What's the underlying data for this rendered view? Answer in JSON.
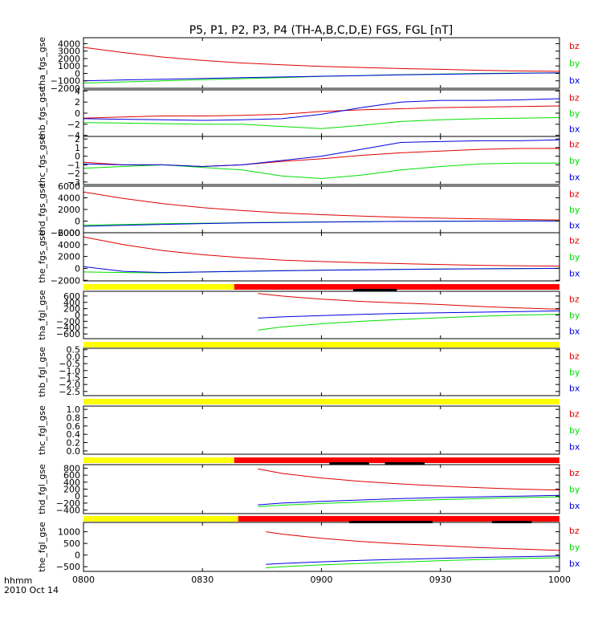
{
  "title": "P5, P1, P2, P3, P4 (TH-A,B,C,D,E) FGS, FGL [nT]",
  "x_axis": {
    "ticks": [
      "0800",
      "0830",
      "0900",
      "0930",
      "1000"
    ],
    "tick_minutes": [
      0,
      30,
      60,
      90,
      120
    ],
    "label_line1": "hhmm",
    "label_line2": "2010 Oct 14"
  },
  "legend_labels": [
    "bz",
    "by",
    "bx"
  ],
  "colors": {
    "bz": "#e00000",
    "by": "#00e000",
    "bx": "#0000e0",
    "bar_yellow": "#ffff00",
    "bar_red": "#ff0000"
  },
  "chart_data": [
    {
      "type": "line",
      "ylabel": "tha_fgs_gse",
      "ylim": [
        -2000,
        4800
      ],
      "yticks": [
        -2000,
        -1000,
        0,
        1000,
        2000,
        3000,
        4000
      ],
      "ytick_labels": [
        "−2000",
        "−1000",
        "0",
        "1000",
        "2000",
        "3000",
        "4000"
      ],
      "x": [
        0,
        10,
        20,
        30,
        40,
        50,
        60,
        70,
        80,
        90,
        100,
        110,
        120
      ],
      "series": [
        {
          "name": "bz",
          "values": [
            3500,
            2800,
            2200,
            1750,
            1400,
            1150,
            950,
            800,
            650,
            550,
            420,
            330,
            280
          ]
        },
        {
          "name": "by",
          "values": [
            -1300,
            -1150,
            -1000,
            -850,
            -700,
            -560,
            -400,
            -280,
            -170,
            -80,
            0,
            50,
            80
          ]
        },
        {
          "name": "bx",
          "values": [
            -1000,
            -880,
            -780,
            -680,
            -580,
            -480,
            -380,
            -290,
            -200,
            -120,
            -50,
            20,
            60
          ]
        }
      ]
    },
    {
      "type": "line",
      "ylabel": "thb_fgs_gse",
      "ylim": [
        -4.2,
        4.2
      ],
      "yticks": [
        -4,
        -2,
        0,
        2,
        4
      ],
      "ytick_labels": [
        "−4",
        "−2",
        "0",
        "2",
        "4"
      ],
      "x": [
        0,
        10,
        20,
        30,
        40,
        50,
        60,
        70,
        80,
        90,
        100,
        110,
        120
      ],
      "series": [
        {
          "name": "bz",
          "values": [
            -0.9,
            -0.7,
            -0.5,
            -0.5,
            -0.4,
            -0.2,
            0.3,
            0.6,
            0.8,
            1.0,
            1.1,
            1.2,
            1.3
          ]
        },
        {
          "name": "by",
          "values": [
            -1.7,
            -1.8,
            -1.9,
            -2.0,
            -2.0,
            -2.4,
            -2.8,
            -2.2,
            -1.5,
            -1.2,
            -1.0,
            -0.9,
            -0.8
          ]
        },
        {
          "name": "bx",
          "values": [
            -1.0,
            -1.1,
            -1.2,
            -1.3,
            -1.2,
            -1.0,
            -0.2,
            1.0,
            2.0,
            2.3,
            2.3,
            2.4,
            2.6
          ]
        }
      ]
    },
    {
      "type": "line",
      "ylabel": "thc_fgs_gse",
      "ylim": [
        -3.3,
        2.3
      ],
      "yticks": [
        -3,
        -2,
        -1,
        0,
        1,
        2
      ],
      "ytick_labels": [
        "−3",
        "−2",
        "−1",
        "0",
        "1",
        "2"
      ],
      "x": [
        0,
        10,
        20,
        30,
        40,
        50,
        60,
        70,
        80,
        90,
        100,
        110,
        120
      ],
      "series": [
        {
          "name": "bz",
          "values": [
            -0.7,
            -1.0,
            -1.0,
            -1.2,
            -1.0,
            -0.6,
            -0.3,
            0.1,
            0.4,
            0.6,
            0.8,
            0.9,
            0.9
          ]
        },
        {
          "name": "by",
          "values": [
            -1.4,
            -1.2,
            -1.0,
            -1.3,
            -1.6,
            -2.3,
            -2.6,
            -2.2,
            -1.6,
            -1.2,
            -0.9,
            -0.8,
            -0.8
          ]
        },
        {
          "name": "bx",
          "values": [
            -0.9,
            -1.0,
            -1.0,
            -1.2,
            -1.0,
            -0.5,
            0.0,
            0.8,
            1.6,
            1.7,
            1.8,
            1.8,
            1.9
          ]
        }
      ]
    },
    {
      "type": "line",
      "ylabel": "thd_fgs_gse",
      "ylim": [
        -2000,
        6000
      ],
      "yticks": [
        -2000,
        0,
        2000,
        4000,
        6000
      ],
      "ytick_labels": [
        "−2000",
        "0",
        "2000",
        "4000",
        "6000"
      ],
      "x": [
        0,
        10,
        20,
        30,
        40,
        50,
        60,
        70,
        80,
        90,
        100,
        110,
        120
      ],
      "series": [
        {
          "name": "bz",
          "values": [
            5000,
            3900,
            3000,
            2300,
            1800,
            1400,
            1100,
            850,
            650,
            500,
            380,
            280,
            200
          ]
        },
        {
          "name": "by",
          "values": [
            -700,
            -580,
            -460,
            -360,
            -270,
            -200,
            -140,
            -90,
            -50,
            -20,
            0,
            20,
            30
          ]
        },
        {
          "name": "bx",
          "values": [
            -900,
            -720,
            -560,
            -430,
            -320,
            -230,
            -160,
            -100,
            -60,
            -30,
            -10,
            10,
            20
          ]
        }
      ]
    },
    {
      "type": "line",
      "ylabel": "the_fgs_gse",
      "ylim": [
        -2100,
        6000
      ],
      "yticks": [
        -2000,
        0,
        2000,
        4000,
        6000
      ],
      "ytick_labels": [
        "−2000",
        "0",
        "2000",
        "4000",
        "6000"
      ],
      "x": [
        0,
        10,
        20,
        30,
        40,
        50,
        60,
        70,
        80,
        90,
        100,
        110,
        120
      ],
      "series": [
        {
          "name": "bz",
          "values": [
            5300,
            4000,
            3000,
            2300,
            1800,
            1400,
            1150,
            950,
            800,
            650,
            520,
            420,
            380
          ]
        },
        {
          "name": "by",
          "values": [
            -600,
            -700,
            -750,
            -600,
            -480,
            -380,
            -290,
            -220,
            -160,
            -110,
            -60,
            -20,
            0
          ]
        },
        {
          "name": "bx",
          "values": [
            300,
            -500,
            -700,
            -600,
            -500,
            -400,
            -310,
            -240,
            -170,
            -120,
            -70,
            -30,
            0
          ]
        }
      ]
    },
    {
      "type": "line",
      "ylabel": "tha_fgl_gse",
      "ylim": [
        -750,
        750
      ],
      "yticks": [
        -600,
        -400,
        -200,
        0,
        200,
        400,
        600
      ],
      "ytick_labels": [
        "−600",
        "−400",
        "−200",
        "0",
        "200",
        "400",
        "600"
      ],
      "x": [
        44,
        50,
        60,
        70,
        80,
        90,
        100,
        110,
        120
      ],
      "series": [
        {
          "name": "bz",
          "values": [
            680,
            600,
            500,
            430,
            380,
            330,
            270,
            220,
            180
          ]
        },
        {
          "name": "by",
          "values": [
            -480,
            -380,
            -280,
            -200,
            -140,
            -90,
            -40,
            0,
            20
          ]
        },
        {
          "name": "bx",
          "values": [
            -100,
            -60,
            -20,
            20,
            50,
            70,
            90,
            110,
            130
          ]
        }
      ]
    },
    {
      "type": "line",
      "ylabel": "thb_fgl_gse",
      "ylim": [
        -2.8,
        0.6
      ],
      "yticks": [
        -2.5,
        -2.0,
        -1.5,
        -1.0,
        -0.5,
        0.0,
        0.5
      ],
      "ytick_labels": [
        "−2.5",
        "−2.0",
        "−1.5",
        "−1.0",
        "−0.5",
        "0.0",
        "0.5"
      ],
      "x": [],
      "series": []
    },
    {
      "type": "line",
      "ylabel": "thc_fgl_gse",
      "ylim": [
        -0.08,
        1.08
      ],
      "yticks": [
        0.0,
        0.2,
        0.4,
        0.6,
        0.8,
        1.0
      ],
      "ytick_labels": [
        "0.0",
        "0.2",
        "0.4",
        "0.6",
        "0.8",
        "1.0"
      ],
      "x": [],
      "series": []
    },
    {
      "type": "line",
      "ylabel": "thd_fgl_gse",
      "ylim": [
        -500,
        900
      ],
      "yticks": [
        -400,
        -200,
        0,
        200,
        400,
        600,
        800
      ],
      "ytick_labels": [
        "−400",
        "−200",
        "0",
        "200",
        "400",
        "600",
        "800"
      ],
      "x": [
        44,
        50,
        60,
        70,
        80,
        90,
        100,
        110,
        120
      ],
      "series": [
        {
          "name": "bz",
          "values": [
            780,
            650,
            520,
            420,
            350,
            290,
            240,
            200,
            170
          ]
        },
        {
          "name": "by",
          "values": [
            -300,
            -260,
            -210,
            -170,
            -130,
            -100,
            -70,
            -40,
            -20
          ]
        },
        {
          "name": "bx",
          "values": [
            -250,
            -200,
            -150,
            -110,
            -70,
            -40,
            -20,
            0,
            20
          ]
        }
      ]
    },
    {
      "type": "line",
      "ylabel": "the_fgl_gse",
      "ylim": [
        -700,
        1400
      ],
      "yticks": [
        -500,
        0,
        500,
        1000
      ],
      "ytick_labels": [
        "−500",
        "0",
        "500",
        "1000"
      ],
      "x": [
        46,
        50,
        60,
        70,
        80,
        90,
        100,
        110,
        120
      ],
      "series": [
        {
          "name": "bz",
          "values": [
            1000,
            900,
            720,
            580,
            480,
            400,
            320,
            260,
            200
          ]
        },
        {
          "name": "by",
          "values": [
            -550,
            -500,
            -420,
            -360,
            -300,
            -240,
            -190,
            -150,
            -110
          ]
        },
        {
          "name": "bx",
          "values": [
            -400,
            -360,
            -290,
            -230,
            -180,
            -140,
            -100,
            -70,
            -40
          ]
        }
      ]
    }
  ],
  "mode_bars": [
    {
      "segments": [
        {
          "color": "yellow",
          "start": 0,
          "end": 38
        },
        {
          "color": "red",
          "start": 38,
          "end": 120
        }
      ],
      "marks": [
        {
          "start": 68,
          "end": 79
        }
      ]
    },
    {
      "segments": [
        {
          "color": "yellow",
          "start": 0,
          "end": 120
        }
      ],
      "marks": []
    },
    {
      "segments": [
        {
          "color": "yellow",
          "start": 0,
          "end": 120
        }
      ],
      "marks": []
    },
    {
      "segments": [
        {
          "color": "yellow",
          "start": 0,
          "end": 38
        },
        {
          "color": "red",
          "start": 38,
          "end": 120
        }
      ],
      "marks": [
        {
          "start": 62,
          "end": 72
        },
        {
          "start": 76,
          "end": 86
        }
      ]
    },
    {
      "segments": [
        {
          "color": "yellow",
          "start": 0,
          "end": 39
        },
        {
          "color": "red",
          "start": 39,
          "end": 120
        }
      ],
      "marks": [
        {
          "start": 67,
          "end": 88
        },
        {
          "start": 103,
          "end": 113
        }
      ]
    }
  ]
}
